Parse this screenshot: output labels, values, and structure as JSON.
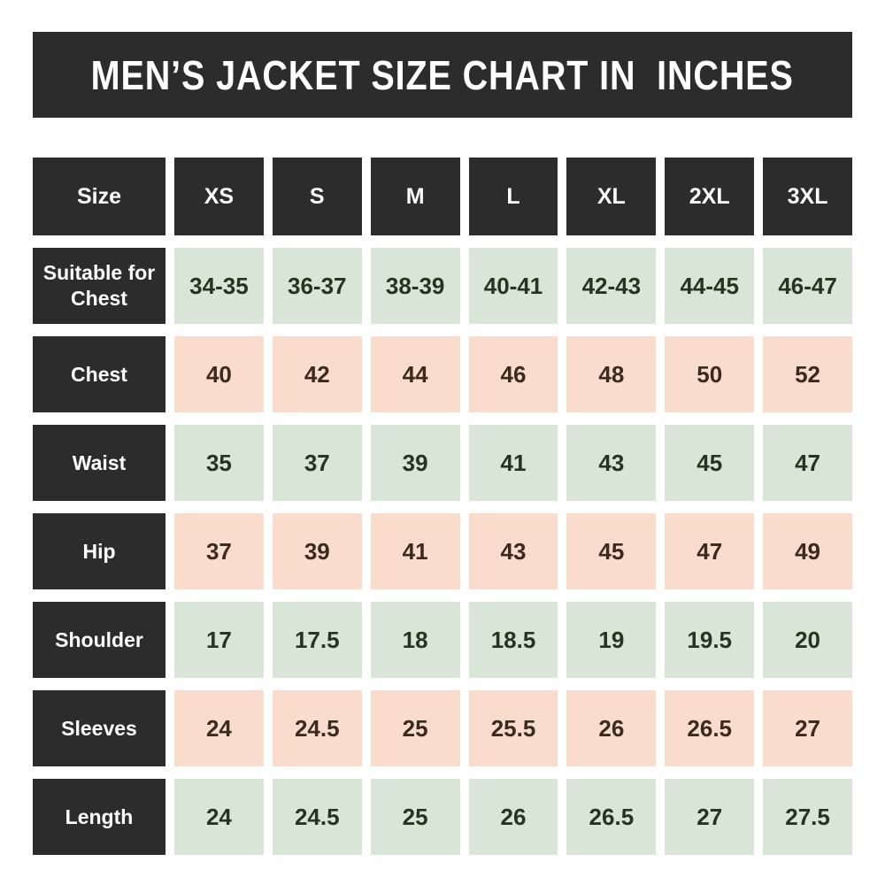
{
  "title": "MEN’S JACKET SIZE CHART IN  INCHES",
  "colors": {
    "dark": "#2d2c2c",
    "white": "#ffffff",
    "green_cell_bg": "#d9e5d6",
    "green_cell_text": "#263420",
    "pink_cell_bg": "#fadccd",
    "pink_cell_text": "#3b2a1e",
    "page_bg": "#ffffff"
  },
  "table": {
    "header": [
      "Size",
      "XS",
      "S",
      "M",
      "L",
      "XL",
      "2XL",
      "3XL"
    ],
    "rows": [
      {
        "label": "Suitable for Chest",
        "tone": "green",
        "values": [
          "34-35",
          "36-37",
          "38-39",
          "40-41",
          "42-43",
          "44-45",
          "46-47"
        ]
      },
      {
        "label": "Chest",
        "tone": "pink",
        "values": [
          "40",
          "42",
          "44",
          "46",
          "48",
          "50",
          "52"
        ]
      },
      {
        "label": "Waist",
        "tone": "green",
        "values": [
          "35",
          "37",
          "39",
          "41",
          "43",
          "45",
          "47"
        ]
      },
      {
        "label": "Hip",
        "tone": "pink",
        "values": [
          "37",
          "39",
          "41",
          "43",
          "45",
          "47",
          "49"
        ]
      },
      {
        "label": "Shoulder",
        "tone": "green",
        "values": [
          "17",
          "17.5",
          "18",
          "18.5",
          "19",
          "19.5",
          "20"
        ]
      },
      {
        "label": "Sleeves",
        "tone": "pink",
        "values": [
          "24",
          "24.5",
          "25",
          "25.5",
          "26",
          "26.5",
          "27"
        ]
      },
      {
        "label": "Length",
        "tone": "green",
        "values": [
          "24",
          "24.5",
          "25",
          "26",
          "26.5",
          "27",
          "27.5"
        ]
      }
    ]
  },
  "chart_data": {
    "type": "table",
    "title": "MEN’S JACKET SIZE CHART IN INCHES",
    "unit": "inches",
    "categories": [
      "XS",
      "S",
      "M",
      "L",
      "XL",
      "2XL",
      "3XL"
    ],
    "series": [
      {
        "name": "Suitable for Chest",
        "values": [
          "34-35",
          "36-37",
          "38-39",
          "40-41",
          "42-43",
          "44-45",
          "46-47"
        ]
      },
      {
        "name": "Chest",
        "values": [
          40,
          42,
          44,
          46,
          48,
          50,
          52
        ]
      },
      {
        "name": "Waist",
        "values": [
          35,
          37,
          39,
          41,
          43,
          45,
          47
        ]
      },
      {
        "name": "Hip",
        "values": [
          37,
          39,
          41,
          43,
          45,
          47,
          49
        ]
      },
      {
        "name": "Shoulder",
        "values": [
          17,
          17.5,
          18,
          18.5,
          19,
          19.5,
          20
        ]
      },
      {
        "name": "Sleeves",
        "values": [
          24,
          24.5,
          25,
          25.5,
          26,
          26.5,
          27
        ]
      },
      {
        "name": "Length",
        "values": [
          24,
          24.5,
          25,
          26,
          26.5,
          27,
          27.5
        ]
      }
    ]
  }
}
